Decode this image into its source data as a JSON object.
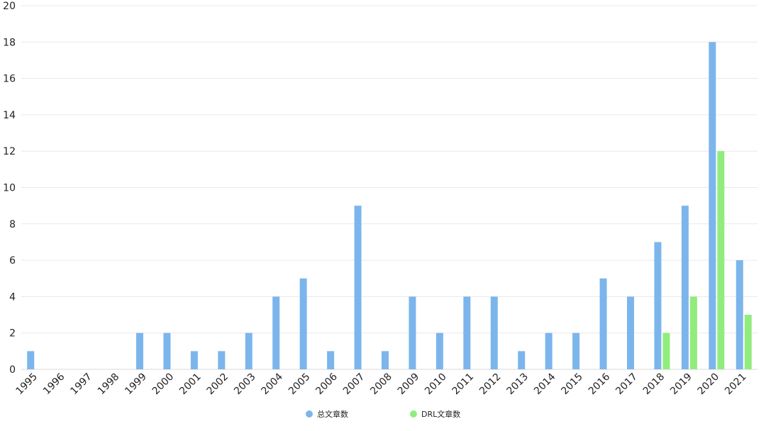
{
  "chart_data": {
    "type": "bar",
    "categories": [
      "1995",
      "1996",
      "1997",
      "1998",
      "1999",
      "2000",
      "2001",
      "2002",
      "2003",
      "2004",
      "2005",
      "2006",
      "2007",
      "2008",
      "2009",
      "2010",
      "2011",
      "2012",
      "2013",
      "2014",
      "2015",
      "2016",
      "2017",
      "2018",
      "2019",
      "2020",
      "2021"
    ],
    "series": [
      {
        "name": "总文章数",
        "color": "#7cb5ec",
        "values": [
          1,
          0,
          0,
          0,
          2,
          2,
          1,
          1,
          2,
          4,
          5,
          1,
          9,
          1,
          4,
          2,
          4,
          4,
          1,
          2,
          2,
          5,
          4,
          7,
          9,
          18,
          6
        ]
      },
      {
        "name": "DRL文章数",
        "color": "#90ed7d",
        "values": [
          0,
          0,
          0,
          0,
          0,
          0,
          0,
          0,
          0,
          0,
          0,
          0,
          0,
          0,
          0,
          0,
          0,
          0,
          0,
          0,
          0,
          0,
          0,
          2,
          4,
          12,
          3
        ]
      }
    ],
    "title": "",
    "xlabel": "",
    "ylabel": "",
    "ylim": [
      0,
      20
    ],
    "yticks": [
      0,
      2,
      4,
      6,
      8,
      10,
      12,
      14,
      16,
      18,
      20
    ],
    "grid": true,
    "legend_position": "bottom-center"
  }
}
